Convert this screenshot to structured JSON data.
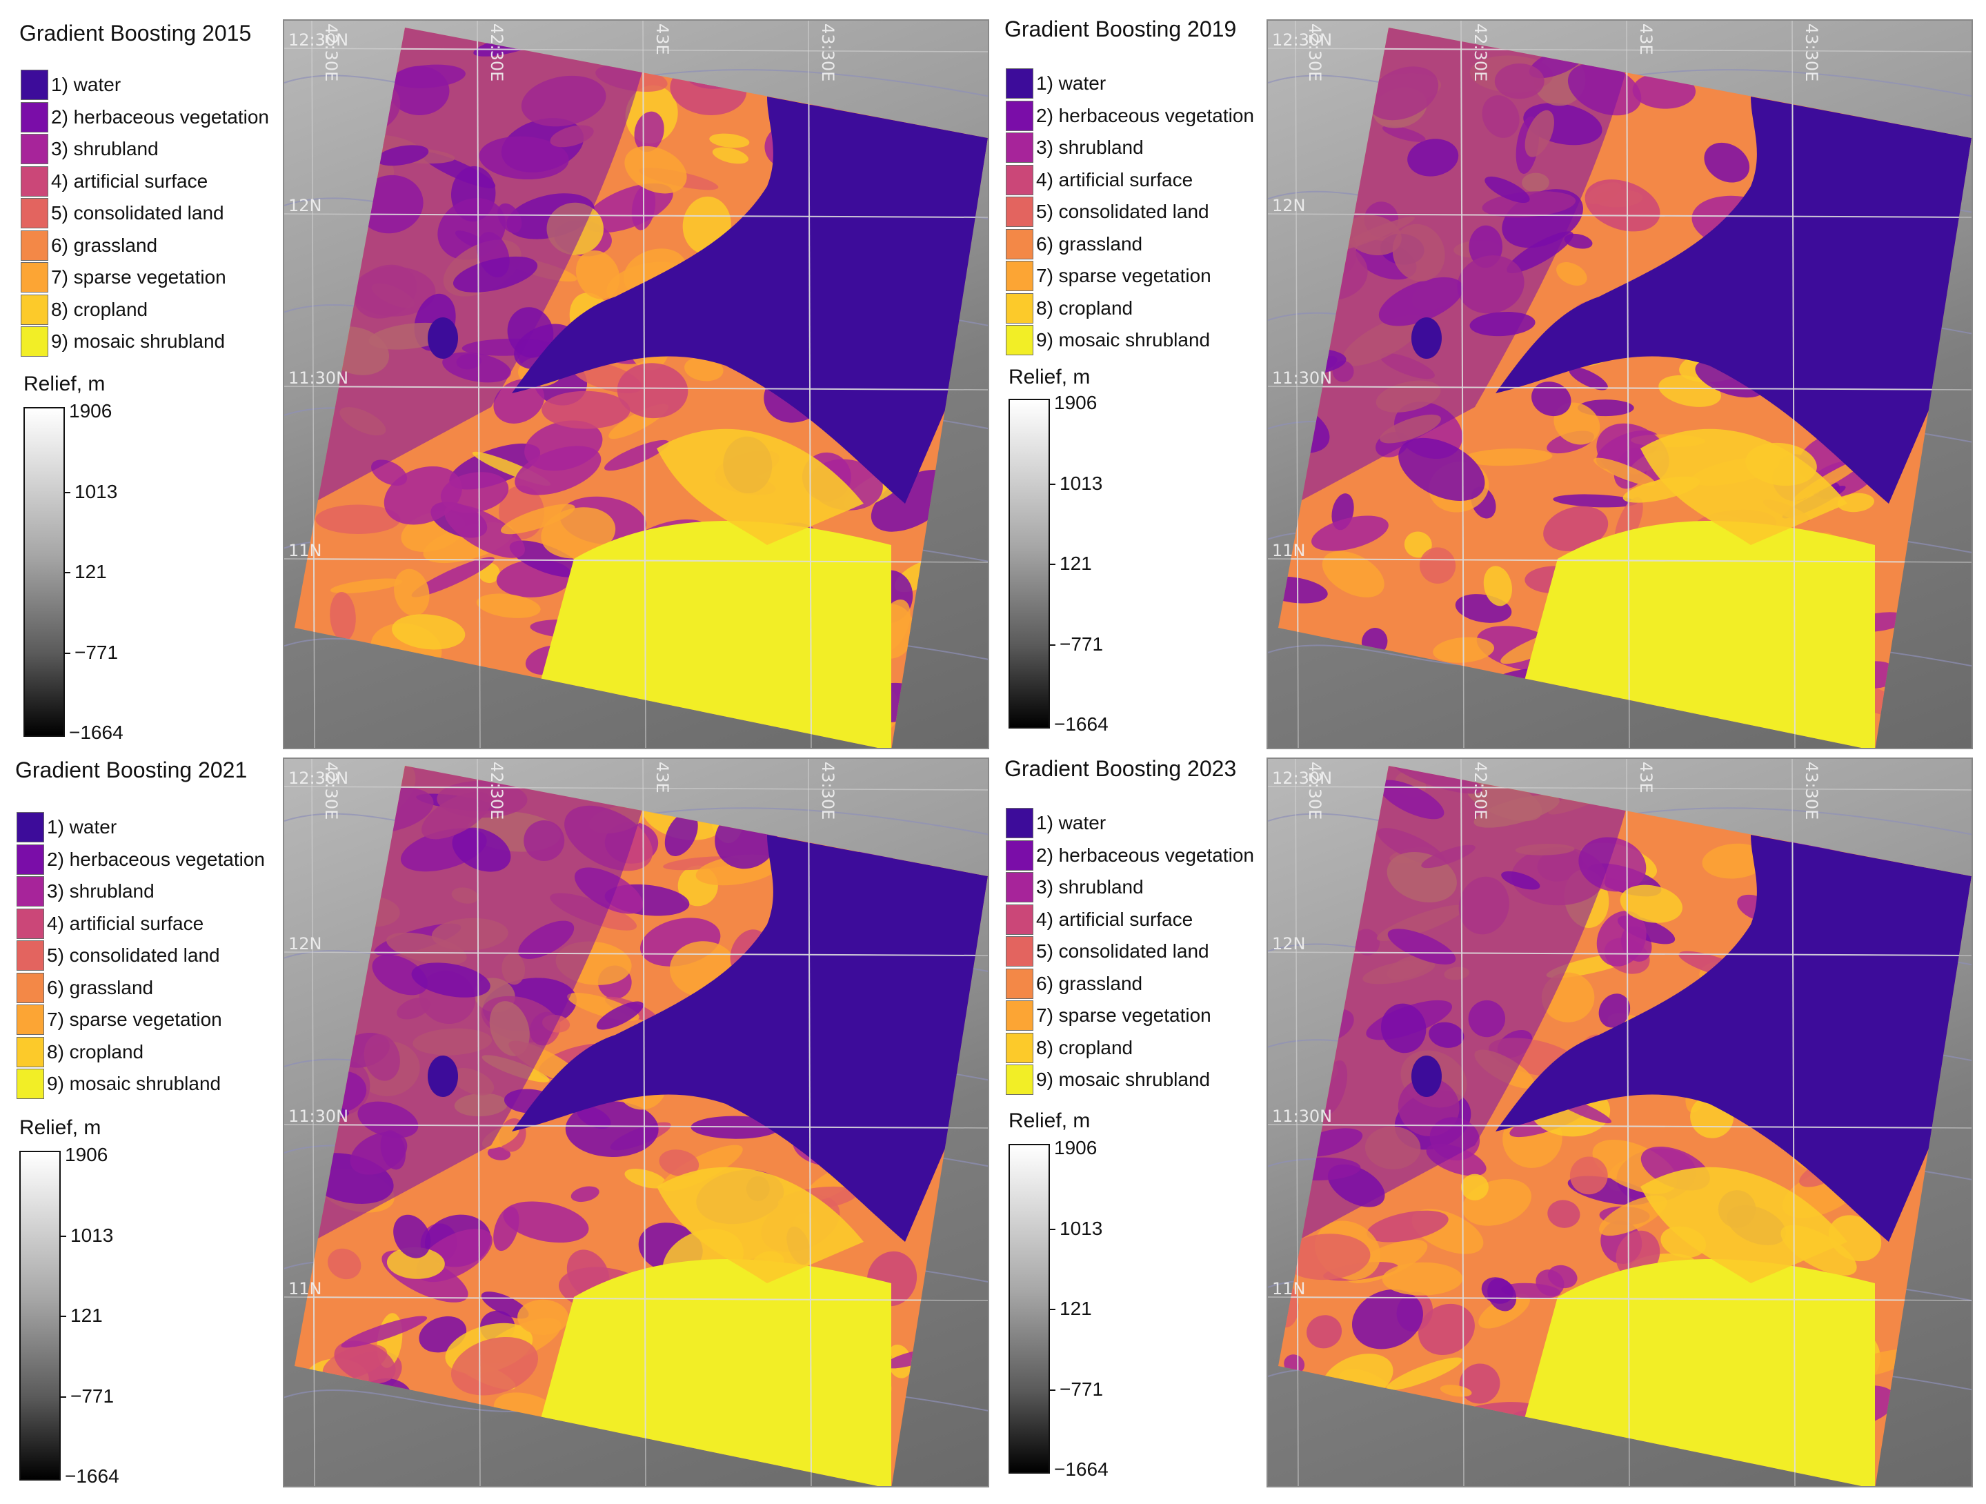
{
  "legend_entries": [
    {
      "label": "1) water",
      "color": "#3d0c9a"
    },
    {
      "label": "2) herbaceous vegetation",
      "color": "#7a0da8"
    },
    {
      "label": "3) shrubland",
      "color": "#a7249a"
    },
    {
      "label": "4) artificial surface",
      "color": "#cb4778"
    },
    {
      "label": "5) consolidated land",
      "color": "#e3645f"
    },
    {
      "label": "6) grassland",
      "color": "#f38847"
    },
    {
      "label": "7) sparse vegetation",
      "color": "#fca534"
    },
    {
      "label": "8) cropland",
      "color": "#fcca2a"
    },
    {
      "label": "9) mosaic shrubland",
      "color": "#f2ee26"
    }
  ],
  "relief": {
    "title": "Relief, m",
    "ticks": [
      "1906",
      "1013",
      "121",
      "−771",
      "−1664"
    ]
  },
  "graticule": {
    "lon": [
      "42:30E",
      "42:30E",
      "43E",
      "43:30E"
    ],
    "lat": [
      "12:30N",
      "12N",
      "11:30N",
      "11N"
    ]
  },
  "panels": [
    {
      "title": "Gradient Boosting 2015"
    },
    {
      "title": "Gradient Boosting 2019"
    },
    {
      "title": "Gradient Boosting 2021"
    },
    {
      "title": "Gradient Boosting 2023"
    }
  ]
}
